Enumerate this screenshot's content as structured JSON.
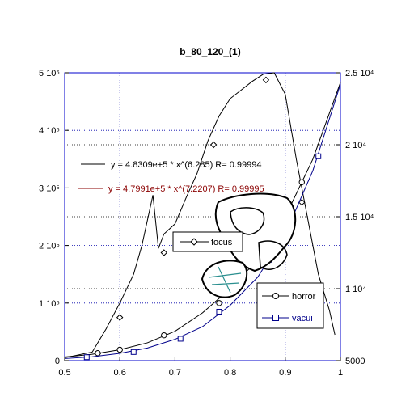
{
  "chart_data": {
    "type": "line",
    "title": "b_80_120_(1)",
    "x_ticks": [
      "0.5",
      "0.6",
      "0.7",
      "0.8",
      "0.9",
      "1"
    ],
    "xlim": [
      0.5,
      1.0
    ],
    "ylim_left": [
      0,
      500000
    ],
    "ylim_right": [
      5000,
      25000
    ],
    "y_ticks_left": [
      {
        "value": 0,
        "label": "0"
      },
      {
        "value": 100000,
        "label": "1 10⁵"
      },
      {
        "value": 200000,
        "label": "2 10⁵"
      },
      {
        "value": 300000,
        "label": "3 10⁵"
      },
      {
        "value": 400000,
        "label": "4 10⁵"
      },
      {
        "value": 500000,
        "label": "5 10⁵"
      }
    ],
    "y_ticks_right": [
      {
        "value": 5000,
        "label": "5000"
      },
      {
        "value": 10000,
        "label": "1 10⁴"
      },
      {
        "value": 15000,
        "label": "1.5 10⁴"
      },
      {
        "value": 20000,
        "label": "2 10⁴"
      },
      {
        "value": 25000,
        "label": "2.5 10⁴"
      }
    ],
    "grid": true,
    "extra_right_gridlines": [
      20000,
      15000,
      10000
    ],
    "equations": [
      {
        "text": "y = 4.8309e+5 * x^(6.285)   R= 0.99994",
        "color": "#000000"
      },
      {
        "text": "y = 4.7991e+5 * x^(7.2207)  R= 0.99995",
        "color": "#8b0000"
      }
    ],
    "series": [
      {
        "name": "focus",
        "axis": "right",
        "color": "#000000",
        "marker": "diamond",
        "x": [
          0.5,
          0.55,
          0.575,
          0.6,
          0.625,
          0.64,
          0.66,
          0.67,
          0.68,
          0.7,
          0.72,
          0.74,
          0.76,
          0.78,
          0.8,
          0.82,
          0.84,
          0.86,
          0.88,
          0.9,
          0.92,
          0.94,
          0.96,
          0.98,
          0.99
        ],
        "y": [
          5200,
          5600,
          7200,
          9000,
          11000,
          13000,
          16500,
          12800,
          13800,
          14500,
          16300,
          18000,
          20300,
          22000,
          23200,
          23800,
          24400,
          24900,
          25000,
          23500,
          19000,
          15000,
          11000,
          8500,
          6800
        ],
        "marker_x": [
          0.56,
          0.6,
          0.68,
          0.77,
          0.865,
          0.93
        ],
        "marker_y": [
          5500,
          8000,
          12500,
          20000,
          24500,
          16000
        ]
      },
      {
        "name": "horror",
        "axis": "left",
        "color": "#000000",
        "marker": "circle",
        "x": [
          0.5,
          0.55,
          0.6,
          0.65,
          0.7,
          0.75,
          0.8,
          0.85,
          0.9,
          0.95,
          1.0
        ],
        "y": [
          6400,
          11000,
          19000,
          31000,
          51000,
          83000,
          125000,
          175000,
          250000,
          350000,
          483000
        ],
        "marker_x": [
          0.56,
          0.6,
          0.68,
          0.78,
          0.86,
          0.93
        ],
        "marker_y": [
          13000,
          19000,
          44000,
          100000,
          180000,
          310000
        ]
      },
      {
        "name": "vacui",
        "axis": "left",
        "color": "#00008b",
        "marker": "square",
        "x": [
          0.5,
          0.55,
          0.6,
          0.65,
          0.7,
          0.75,
          0.8,
          0.85,
          0.9,
          0.95,
          1.0
        ],
        "y": [
          3600,
          6700,
          12700,
          22000,
          37000,
          59000,
          96000,
          145000,
          220000,
          330000,
          480000
        ],
        "marker_x": [
          0.54,
          0.625,
          0.71,
          0.78,
          0.87,
          0.96
        ],
        "marker_y": [
          6000,
          15000,
          38000,
          85000,
          175000,
          355000
        ]
      }
    ],
    "legend_focus": {
      "label": "focus",
      "placement": "center-left"
    },
    "legend_horror_vacui": {
      "labels": [
        "horror",
        "vacui"
      ],
      "placement": "bottom-right"
    }
  }
}
